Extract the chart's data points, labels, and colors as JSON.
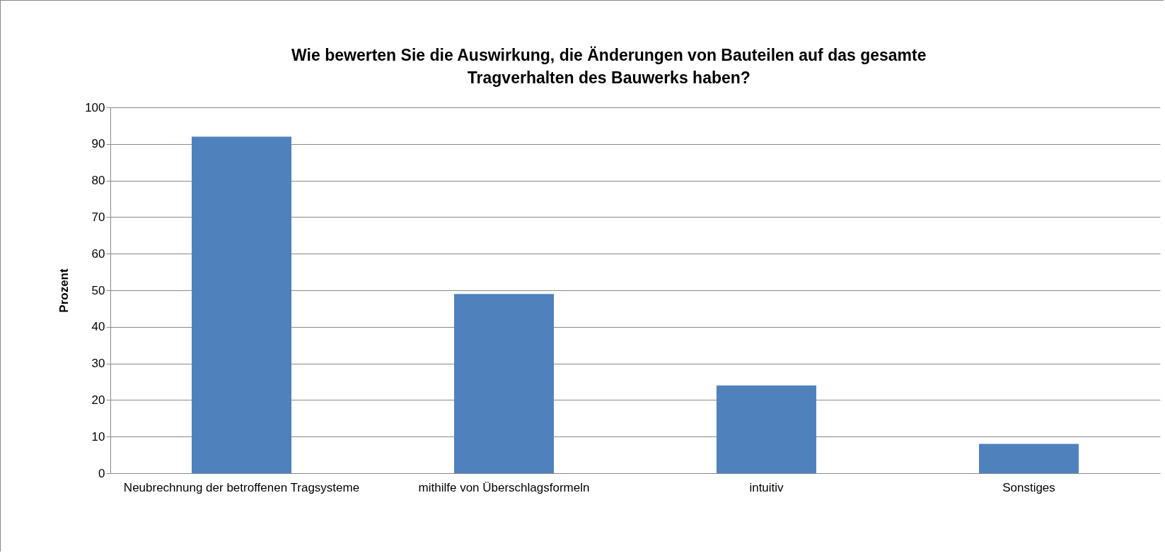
{
  "chart_data": {
    "type": "bar",
    "title": "Wie bewerten Sie die Auswirkung, die Änderungen von Bauteilen auf das gesamte Tragverhalten des Bauwerks haben?",
    "ylabel": "Prozent",
    "categories": [
      "Neubrechnung der betroffenen Tragsysteme",
      "mithilfe von Überschlagsformeln",
      "intuitiv",
      "Sonstiges"
    ],
    "values": [
      92,
      49,
      24,
      8
    ],
    "color": "#4f81bd",
    "ylim": [
      0,
      100
    ],
    "yticks": [
      0,
      10,
      20,
      30,
      40,
      50,
      60,
      70,
      80,
      90,
      100
    ],
    "grid": "y"
  }
}
